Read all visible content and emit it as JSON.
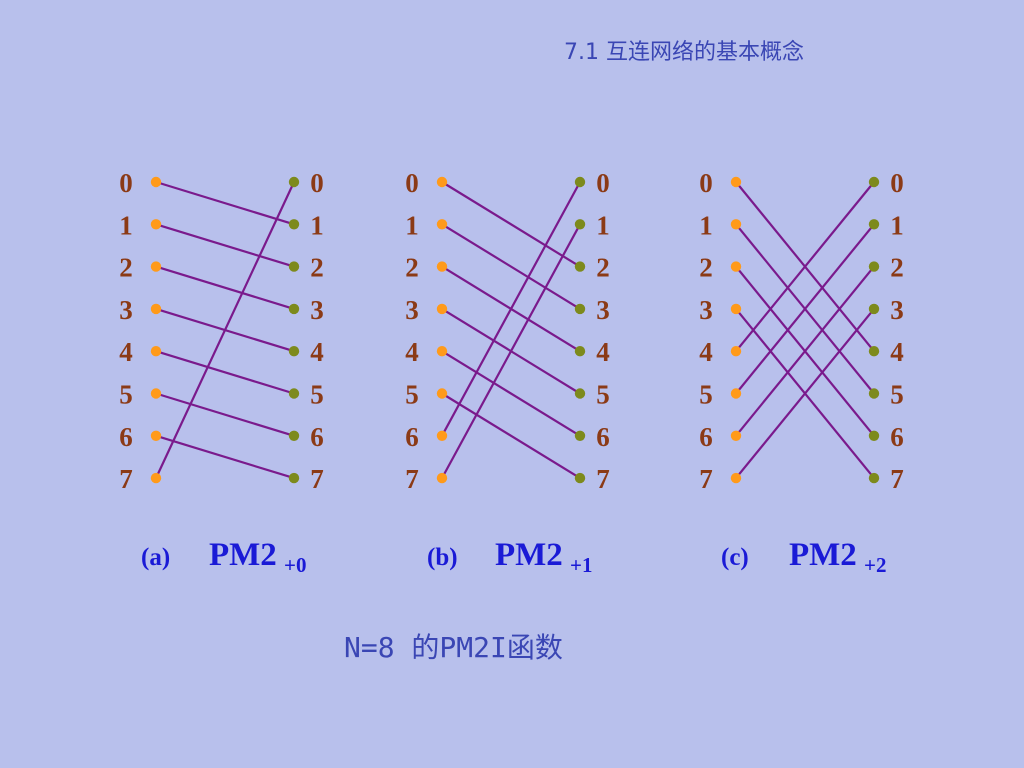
{
  "header": {
    "title": "7.1 互连网络的基本概念"
  },
  "footer": {
    "caption": "N=8 的PM2I函数"
  },
  "colors": {
    "background": "#b8c0ec",
    "input_node": "#ff9a1a",
    "output_node": "#7d8a1c",
    "line": "#7a1a8c",
    "label": "#8b3a16",
    "caption": "#1a1ad6"
  },
  "node_labels": [
    "0",
    "1",
    "2",
    "3",
    "4",
    "5",
    "6",
    "7"
  ],
  "diagrams": [
    {
      "caption_letter": "(a)",
      "caption_name": "PM2",
      "caption_sub": "+0",
      "connections": [
        [
          0,
          1
        ],
        [
          1,
          2
        ],
        [
          2,
          3
        ],
        [
          3,
          4
        ],
        [
          4,
          5
        ],
        [
          5,
          6
        ],
        [
          6,
          7
        ],
        [
          7,
          0
        ]
      ]
    },
    {
      "caption_letter": "(b)",
      "caption_name": "PM2",
      "caption_sub": "+1",
      "connections": [
        [
          0,
          2
        ],
        [
          1,
          3
        ],
        [
          2,
          4
        ],
        [
          3,
          5
        ],
        [
          4,
          6
        ],
        [
          5,
          7
        ],
        [
          6,
          0
        ],
        [
          7,
          1
        ]
      ]
    },
    {
      "caption_letter": "(c)",
      "caption_name": "PM2",
      "caption_sub": "+2",
      "connections": [
        [
          0,
          4
        ],
        [
          1,
          5
        ],
        [
          2,
          6
        ],
        [
          3,
          7
        ],
        [
          4,
          0
        ],
        [
          5,
          1
        ],
        [
          6,
          2
        ],
        [
          7,
          3
        ]
      ]
    }
  ]
}
